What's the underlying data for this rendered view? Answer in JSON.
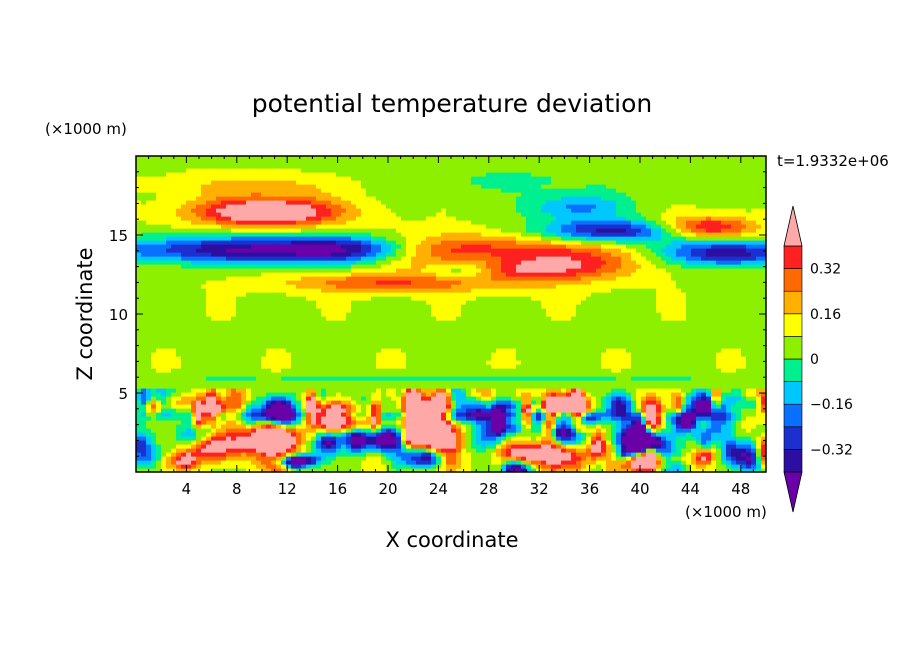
{
  "chart_data": {
    "type": "heatmap",
    "title": "potential temperature deviation",
    "xlabel": "X coordinate",
    "ylabel": "Z coordinate",
    "x_unit": "(×1000 m)",
    "z_unit": "(×1000 m)",
    "time_label": "t=1.9332e+06",
    "xlim": [
      0,
      50
    ],
    "ylim": [
      0,
      20
    ],
    "x_ticks": [
      4,
      8,
      12,
      16,
      20,
      24,
      28,
      32,
      36,
      40,
      44,
      48
    ],
    "x_tick_labels": [
      "4",
      "8",
      "12",
      "16",
      "20",
      "24",
      "28",
      "32",
      "36",
      "40",
      "44",
      "48"
    ],
    "y_ticks": [
      5,
      10,
      15
    ],
    "y_tick_labels": [
      "5",
      "10",
      "15"
    ],
    "colorbar": {
      "levels": [
        -0.4,
        -0.32,
        -0.24,
        -0.16,
        -0.08,
        0,
        0.08,
        0.16,
        0.24,
        0.32,
        0.4
      ],
      "tick_values": [
        0.32,
        0.16,
        0,
        -0.16,
        -0.32
      ],
      "tick_labels": [
        "0.32",
        "0.16",
        "0",
        "−0.16",
        "−0.32"
      ],
      "colors": [
        "#6a00a8",
        "#2c0fa0",
        "#1c2fcf",
        "#0a70ff",
        "#00c8ff",
        "#00f090",
        "#8cf000",
        "#ffff00",
        "#ffb000",
        "#ff6a00",
        "#ff2020",
        "#ffa8a8"
      ],
      "under_color": "#6a00a8",
      "over_color": "#ffa8a8"
    },
    "background_color": "#8cf000",
    "field_summary": "Anomaly field: strong negative band near Z=13-15, positive lenses at Z=12-17, mostly weak positive in Z=6-11, turbulent mixed anomalies below Z=5."
  }
}
